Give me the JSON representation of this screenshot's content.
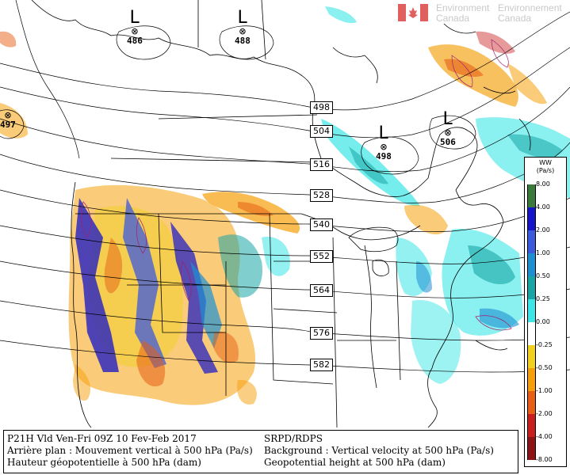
{
  "branding": {
    "org_en_line1": "Environment",
    "org_en_line2": "Canada",
    "org_fr_line1": "Environnement",
    "org_fr_line2": "Canada"
  },
  "lows": [
    {
      "letter": "L",
      "value": "486"
    },
    {
      "letter": "L",
      "value": "488"
    },
    {
      "letter": "L",
      "value": "498"
    },
    {
      "letter": "L",
      "value": "506"
    }
  ],
  "edge_value": "497",
  "height_labels": [
    "498",
    "504",
    "516",
    "528",
    "540",
    "552",
    "564",
    "576",
    "582"
  ],
  "legend": {
    "title_line1": "WW",
    "title_line2": "(Pa/s)",
    "levels": [
      "8.00",
      "4.00",
      "2.00",
      "1.00",
      "0.50",
      "0.25",
      "0.00",
      "-0.25",
      "-0.50",
      "-1.00",
      "-2.00",
      "-4.00",
      "-8.00"
    ],
    "colors": [
      "#3a7a3a",
      "#1414c8",
      "#3c5adc",
      "#1e90d2",
      "#19a5a5",
      "#3ce6e6",
      "#ffffff",
      "#f0d21e",
      "#f5a00a",
      "#e65f14",
      "#c81e1e",
      "#8c1414"
    ]
  },
  "footer": {
    "line1_fr": "P21H Vld Ven-Fri 09Z 10 Fev-Feb 2017",
    "line2_fr": "Arrière plan : Mouvement vertical à 500 hPa (Pa/s)",
    "line3_fr": "Hauteur géopotentielle à 500 hPa (dam)",
    "line1_en": "SRPD/RDPS",
    "line2_en": "Background : Vertical velocity at 500 hPa (Pa/s)",
    "line3_en": "Geopotential height at 500 hPa (dam)"
  }
}
